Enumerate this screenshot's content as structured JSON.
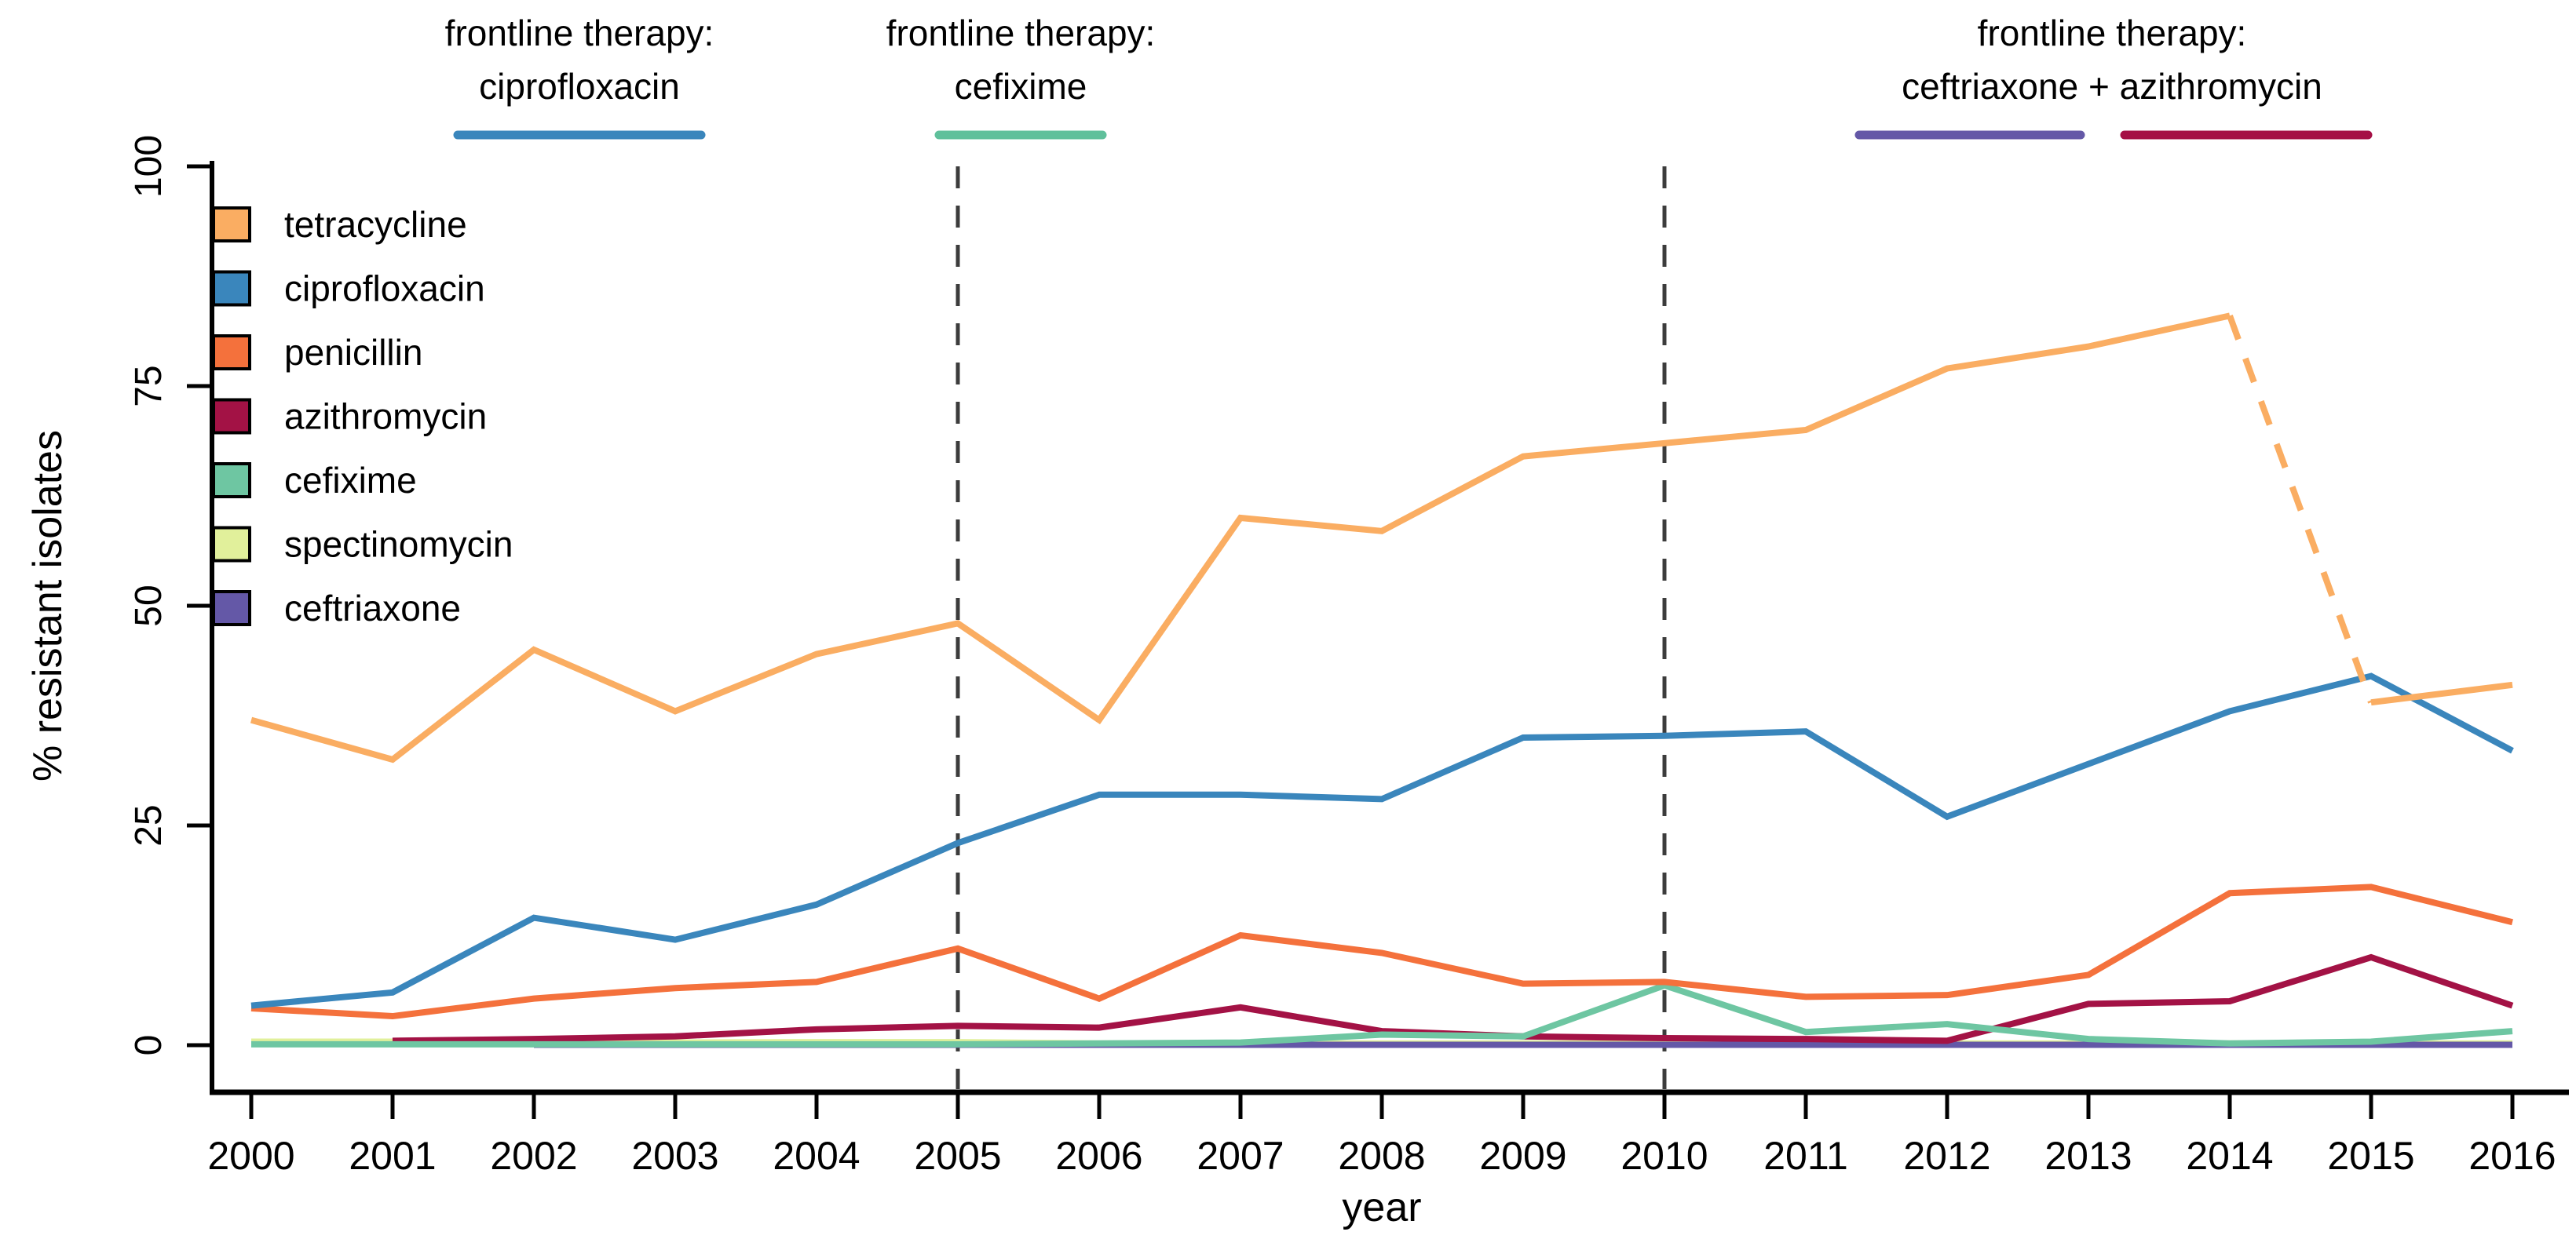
{
  "figure": {
    "background": "#ffffff",
    "text_color": "#000000",
    "vline_color": "#3c3c3c"
  },
  "annotations": [
    {
      "line1": "frontline therapy:",
      "line2": "ciprofloxacin",
      "underlines": [
        {
          "word": "ciprofloxacin",
          "color": "#3A86BC"
        }
      ]
    },
    {
      "line1": "frontline therapy:",
      "line2": "cefixime",
      "underlines": [
        {
          "word": "cefixime",
          "color": "#5FC09B"
        }
      ]
    },
    {
      "line1": "frontline therapy:",
      "line2": "ceftriaxone + azithromycin",
      "underlines": [
        {
          "word": "ceftriaxone",
          "color": "#6458A7"
        },
        {
          "word": "azithromycin",
          "color": "#A50F45"
        }
      ]
    }
  ],
  "legend": {
    "items": [
      {
        "label": "tetracycline",
        "color": "#FAAD62"
      },
      {
        "label": "ciprofloxacin",
        "color": "#3A86BC"
      },
      {
        "label": "penicillin",
        "color": "#F4713C"
      },
      {
        "label": "azithromycin",
        "color": "#A31245"
      },
      {
        "label": "cefixime",
        "color": "#6EC6A2"
      },
      {
        "label": "spectinomycin",
        "color": "#E1F09B"
      },
      {
        "label": "ceftriaxone",
        "color": "#6458A7"
      }
    ]
  },
  "chart_data": {
    "type": "line",
    "title": "",
    "xlabel": "year",
    "ylabel": "% resistant isolates",
    "x": [
      2000,
      2001,
      2002,
      2003,
      2004,
      2005,
      2006,
      2007,
      2008,
      2009,
      2010,
      2011,
      2012,
      2013,
      2014,
      2015,
      2016
    ],
    "ylim": [
      0,
      100
    ],
    "yticks": [
      0,
      25,
      50,
      75,
      100
    ],
    "grid": false,
    "legend_position": "top-left-inside",
    "vlines": [
      {
        "x": 2005,
        "style": "dashed"
      },
      {
        "x": 2010,
        "style": "dashed"
      }
    ],
    "series": [
      {
        "name": "tetracycline",
        "color": "#FAAD62",
        "values": [
          37,
          32.5,
          45,
          38,
          44.5,
          48,
          37,
          60,
          58.5,
          67,
          68.5,
          70,
          77,
          79.5,
          83,
          39,
          41
        ],
        "dashed_between": [
          2014,
          2015
        ]
      },
      {
        "name": "ciprofloxacin",
        "color": "#3A86BC",
        "values": [
          4.5,
          6,
          14.5,
          12,
          16,
          23,
          28.5,
          28.5,
          28,
          35,
          35.2,
          35.7,
          26,
          32,
          38,
          42,
          33.5
        ]
      },
      {
        "name": "penicillin",
        "color": "#F4713C",
        "values": [
          4.2,
          3.3,
          5.3,
          6.5,
          7.2,
          11,
          5.3,
          12.5,
          10.5,
          7,
          7.2,
          5.5,
          5.7,
          8,
          17.3,
          18,
          14
        ]
      },
      {
        "name": "azithromycin",
        "color": "#A31245",
        "values": [
          null,
          0.5,
          0.7,
          1,
          1.8,
          2.2,
          2,
          4.3,
          1.6,
          1,
          0.8,
          0.7,
          0.5,
          4.7,
          5,
          10,
          4.5
        ]
      },
      {
        "name": "cefixime",
        "color": "#6EC6A2",
        "values": [
          0.1,
          0.1,
          0.1,
          0.1,
          0.1,
          0.1,
          0.2,
          0.3,
          1.2,
          1,
          6.8,
          1.5,
          2.4,
          0.7,
          0.2,
          0.4,
          1.6
        ]
      },
      {
        "name": "spectinomycin",
        "color": "#E1F09B",
        "values": [
          0.4,
          0.4,
          0.35,
          0.3,
          0.35,
          0.35,
          0.2,
          0.2,
          0.2,
          0.2,
          0.2,
          0.2,
          0.2,
          0.2,
          0.2,
          0.2,
          0.2
        ]
      },
      {
        "name": "ceftriaxone",
        "color": "#6458A7",
        "values": [
          null,
          null,
          0.05,
          0.05,
          0.05,
          0.05,
          0.05,
          0.05,
          0.05,
          0.05,
          0.05,
          0.05,
          0.05,
          0.05,
          0.05,
          0.05,
          0.05
        ]
      }
    ]
  }
}
